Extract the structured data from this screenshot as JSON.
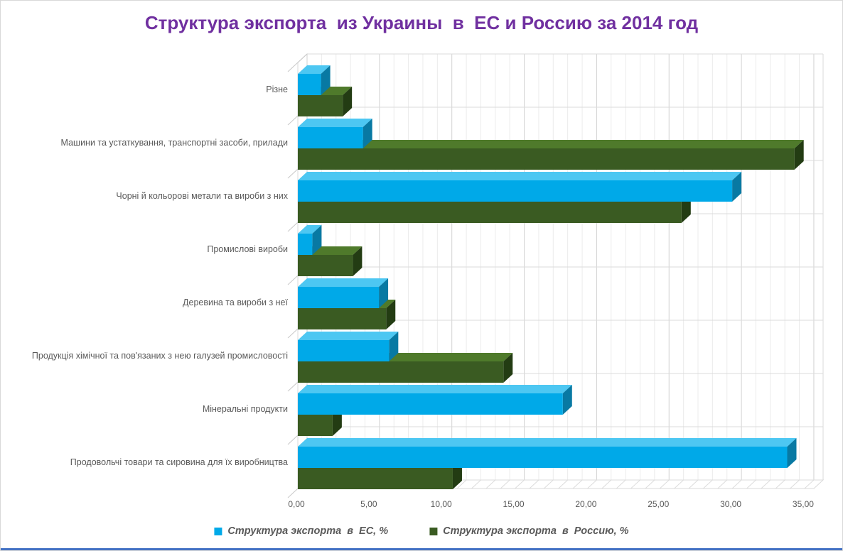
{
  "window": {
    "frame_border_color": "#D8D8D8",
    "accent_line_color": "#4472C4"
  },
  "title": {
    "text": "Структура экспорта  из Украины  в  ЕС и Россию за 2014 год",
    "color": "#7030A0"
  },
  "chart_data": {
    "type": "bar",
    "orientation": "horizontal",
    "style": "3d",
    "title": "Структура экспорта  из Украины  в  ЕС и Россию за 2014 год",
    "categories": [
      "Різне",
      "Машини та устаткування, транспортні засоби, прилади",
      "Чорні й кольорові метали та вироби з них",
      "Промислові вироби",
      "Деревина та вироби з неї",
      "Продукція хімічної та пов'язаних з нею галузей промисловості",
      "Мінеральні продукти",
      "Продовольчі товари та сировина для їх виробництва"
    ],
    "series": [
      {
        "name": "Структура экспорта  в  ЕС, %",
        "color": "#00A9E8",
        "color_top": "#4DC7F2",
        "color_side": "#0879A3",
        "values": [
          1.6,
          4.5,
          30.0,
          1.0,
          5.6,
          6.3,
          18.3,
          33.8
        ]
      },
      {
        "name": "Структура экспорта  в  Россию, %",
        "color": "#3A5B22",
        "color_top": "#4F7A2B",
        "color_side": "#233C13",
        "values": [
          3.1,
          34.3,
          26.5,
          3.8,
          6.1,
          14.2,
          2.4,
          10.7
        ]
      }
    ],
    "x_ticks": [
      "0,00",
      "5,00",
      "10,00",
      "15,00",
      "20,00",
      "25,00",
      "30,00",
      "35,00"
    ],
    "xlim": [
      0,
      35
    ],
    "x_major_step": 5,
    "x_minor_step": 1,
    "grid": true,
    "legend_position": "bottom",
    "xlabel": "",
    "ylabel": ""
  }
}
